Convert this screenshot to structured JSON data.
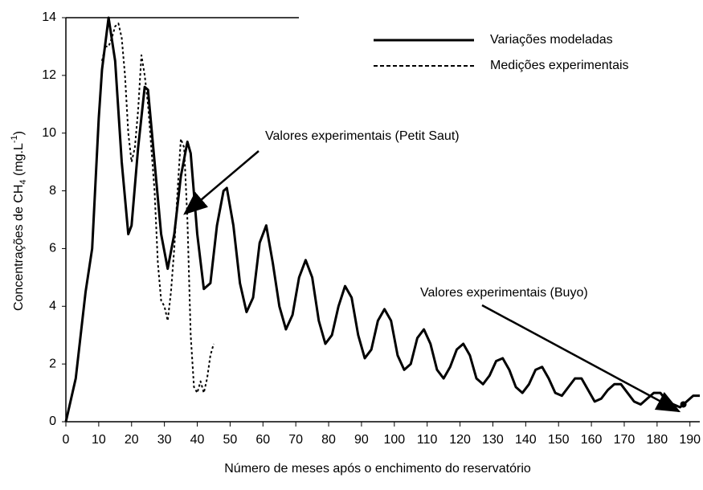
{
  "chart_data": {
    "type": "line",
    "xlabel": "Número de meses após o enchimento do reservatório",
    "ylabel": {
      "main": "Concentrações de CH",
      "sub": "4",
      "unit": " (mg.L",
      "sup": "-1",
      "close": ")"
    },
    "xlim": [
      0,
      193
    ],
    "ylim": [
      0,
      14
    ],
    "xticks": [
      0,
      10,
      20,
      30,
      40,
      50,
      60,
      70,
      80,
      90,
      100,
      110,
      120,
      130,
      140,
      150,
      160,
      170,
      180,
      190
    ],
    "yticks": [
      0,
      2,
      4,
      6,
      8,
      10,
      12,
      14
    ],
    "legend": "upper right",
    "series": [
      {
        "name": "Variações modeladas",
        "color": "#000000",
        "line_style": "solid",
        "x": [
          0,
          3,
          6,
          8,
          10,
          11,
          13,
          15,
          17,
          19,
          20,
          22,
          24,
          25,
          27,
          29,
          31,
          33,
          35,
          37,
          38,
          40,
          42,
          44,
          46,
          48,
          49,
          51,
          53,
          55,
          57,
          59,
          61,
          63,
          65,
          67,
          69,
          71,
          73,
          75,
          77,
          79,
          81,
          83,
          85,
          87,
          89,
          91,
          93,
          95,
          97,
          99,
          101,
          103,
          105,
          107,
          109,
          111,
          113,
          115,
          117,
          119,
          121,
          123,
          125,
          127,
          129,
          131,
          133,
          135,
          137,
          139,
          141,
          143,
          145,
          147,
          149,
          151,
          153,
          155,
          157,
          159,
          161,
          163,
          165,
          167,
          169,
          171,
          173,
          175,
          177,
          179,
          181,
          183,
          185,
          187,
          189,
          191,
          193
        ],
        "values": [
          0,
          1.5,
          4.5,
          6,
          10.5,
          12.2,
          14,
          12.5,
          9,
          6.5,
          6.8,
          9.5,
          11.6,
          11.5,
          9,
          6.5,
          5.3,
          6.5,
          8.5,
          9.7,
          9.3,
          6.5,
          4.6,
          4.8,
          6.8,
          8.0,
          8.1,
          6.8,
          4.8,
          3.8,
          4.3,
          6.2,
          6.8,
          5.5,
          4.0,
          3.2,
          3.7,
          5.0,
          5.6,
          5.0,
          3.5,
          2.7,
          3.0,
          4.0,
          4.7,
          4.3,
          3.0,
          2.2,
          2.5,
          3.5,
          3.9,
          3.5,
          2.3,
          1.8,
          2.0,
          2.9,
          3.2,
          2.7,
          1.8,
          1.5,
          1.9,
          2.5,
          2.7,
          2.3,
          1.5,
          1.3,
          1.6,
          2.1,
          2.2,
          1.8,
          1.2,
          1.0,
          1.3,
          1.8,
          1.9,
          1.5,
          1.0,
          0.9,
          1.2,
          1.5,
          1.5,
          1.1,
          0.7,
          0.8,
          1.1,
          1.3,
          1.3,
          1.0,
          0.7,
          0.6,
          0.8,
          1.0,
          1.0,
          0.7,
          0.6,
          0.5,
          0.7,
          0.9,
          0.9
        ]
      },
      {
        "name": "Medições experimentais",
        "color": "#000000",
        "line_style": "dashed",
        "x": [
          11,
          12,
          13,
          14,
          15,
          16,
          17,
          18,
          19,
          20,
          21,
          22,
          23,
          24,
          25,
          26,
          27,
          28,
          29,
          30,
          31,
          32,
          33,
          34,
          35,
          36,
          37,
          38,
          39,
          40,
          41,
          42,
          43,
          44,
          45
        ],
        "values": [
          12.5,
          13,
          13,
          13.3,
          13.7,
          13.8,
          13.3,
          12,
          10,
          9,
          9.5,
          10.8,
          12.7,
          12,
          11,
          9.5,
          8,
          5.5,
          4.2,
          4.0,
          3.5,
          4.5,
          6.0,
          8,
          9.8,
          9.5,
          7,
          3,
          1.2,
          1.0,
          1.4,
          1.0,
          1.5,
          2.3,
          2.7
        ]
      }
    ],
    "annotations": [
      {
        "text": "Valores experimentais (Petit Saut)"
      },
      {
        "text": "Valores experimentais (Buyo)",
        "point": {
          "x": 188,
          "y": 0.6
        }
      }
    ]
  }
}
